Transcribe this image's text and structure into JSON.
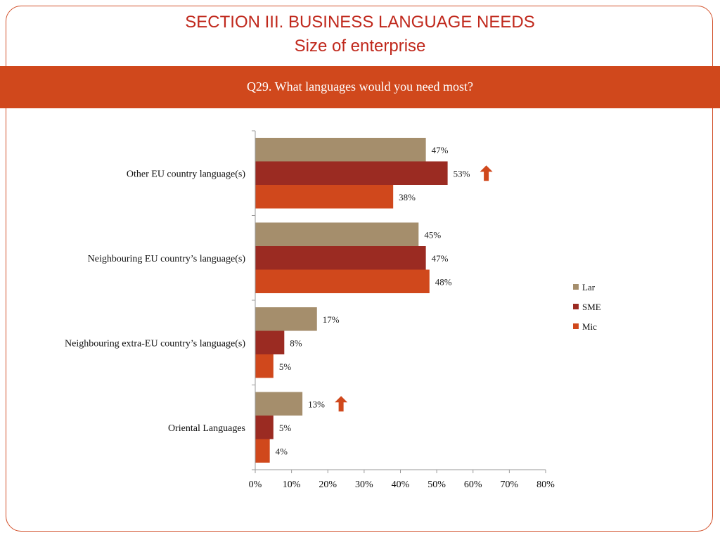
{
  "header": {
    "title": "SECTION III. BUSINESS LANGUAGE NEEDS",
    "subtitle": "Size of enterprise",
    "question": "Q29. What languages would you need most?"
  },
  "colors": {
    "accent": "#d0481c",
    "title": "#c0281c",
    "series": [
      "#a58e6c",
      "#9b2b22",
      "#d0481c"
    ],
    "arrow": "#d0481c"
  },
  "chart_data": {
    "type": "bar",
    "orientation": "horizontal",
    "categories": [
      "Other EU country language(s)",
      "Neighbouring EU country’s language(s)",
      "Neighbouring extra-EU country’s language(s)",
      "Oriental Languages"
    ],
    "series": [
      {
        "name": "Lar",
        "values": [
          47,
          45,
          17,
          13
        ],
        "labels": [
          "47%",
          "45%",
          "17%",
          "13%"
        ]
      },
      {
        "name": "SME",
        "values": [
          53,
          47,
          8,
          5
        ],
        "labels": [
          "53%",
          "47%",
          "8%",
          "5%"
        ]
      },
      {
        "name": "Mic",
        "values": [
          38,
          48,
          5,
          4
        ],
        "labels": [
          "38%",
          "48%",
          "5%",
          "4%"
        ]
      }
    ],
    "xlim": [
      0,
      80
    ],
    "xticks": [
      "0%",
      "10%",
      "20%",
      "30%",
      "40%",
      "50%",
      "60%",
      "70%",
      "80%"
    ],
    "grid": false,
    "legend": "right",
    "annotations": [
      {
        "type": "up-arrow",
        "category": 0,
        "series": 1
      },
      {
        "type": "up-arrow",
        "category": 3,
        "series": 0
      }
    ]
  }
}
